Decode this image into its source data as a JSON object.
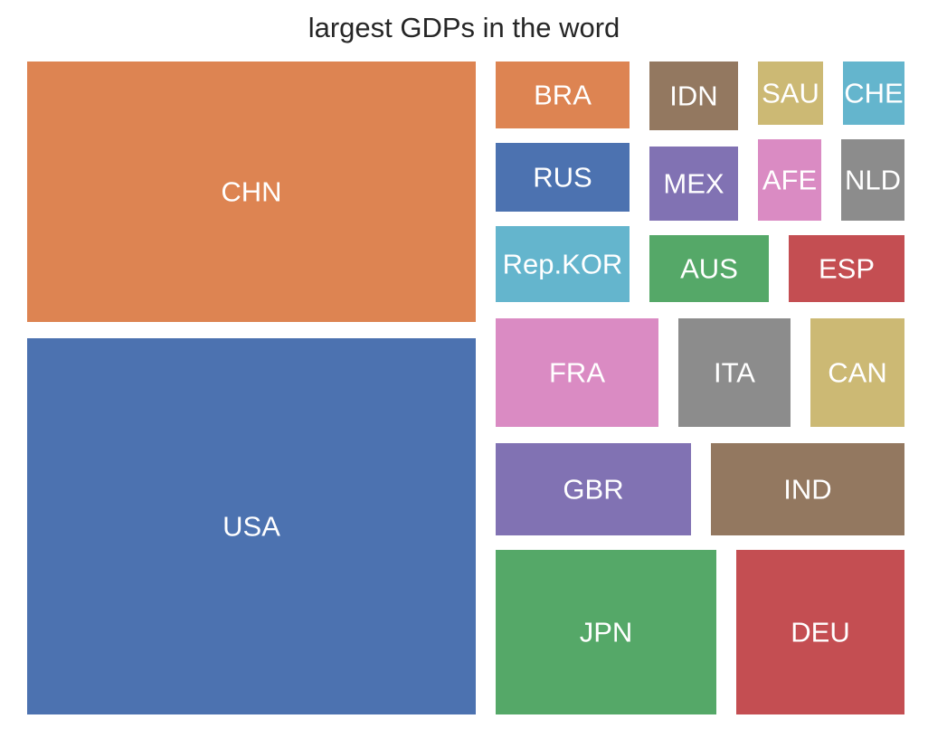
{
  "chart_data": {
    "type": "treemap",
    "title": "largest GDPs in the word",
    "items": [
      {
        "label": "USA",
        "value": 23.3,
        "color": "#4c72b0"
      },
      {
        "label": "CHN",
        "value": 17.7,
        "color": "#dd8452"
      },
      {
        "label": "JPN",
        "value": 4.9,
        "color": "#55a868"
      },
      {
        "label": "DEU",
        "value": 4.2,
        "color": "#c44e52"
      },
      {
        "label": "GBR",
        "value": 3.1,
        "color": "#8172b3"
      },
      {
        "label": "IND",
        "value": 3.2,
        "color": "#937860"
      },
      {
        "label": "FRA",
        "value": 2.95,
        "color": "#da8bc3"
      },
      {
        "label": "ITA",
        "value": 2.1,
        "color": "#8c8c8c"
      },
      {
        "label": "CAN",
        "value": 2.0,
        "color": "#ccb974"
      },
      {
        "label": "Rep.KOR",
        "value": 1.8,
        "color": "#64b5cd"
      },
      {
        "label": "AUS",
        "value": 1.5,
        "color": "#55a868"
      },
      {
        "label": "ESP",
        "value": 1.4,
        "color": "#c44e52"
      },
      {
        "label": "RUS",
        "value": 1.8,
        "color": "#4c72b0"
      },
      {
        "label": "MEX",
        "value": 1.3,
        "color": "#8172b3"
      },
      {
        "label": "AFE",
        "value": 1.1,
        "color": "#da8bc3"
      },
      {
        "label": "NLD",
        "value": 1.0,
        "color": "#8c8c8c"
      },
      {
        "label": "BRA",
        "value": 1.6,
        "color": "#dd8452"
      },
      {
        "label": "IDN",
        "value": 1.2,
        "color": "#937860"
      },
      {
        "label": "SAU",
        "value": 0.85,
        "color": "#ccb974"
      },
      {
        "label": "CHE",
        "value": 0.8,
        "color": "#64b5cd"
      }
    ]
  }
}
